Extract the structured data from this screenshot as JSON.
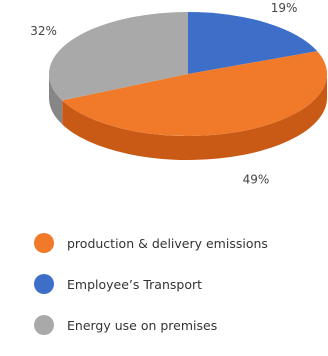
{
  "chart_data": {
    "type": "pie",
    "labels": [
      "production & delivery emissions",
      "Employee’s Transport",
      "Energy use on premises"
    ],
    "values": [
      49,
      19,
      32
    ],
    "value_labels": [
      "49%",
      "19%",
      "32%"
    ],
    "colors": [
      "#f07a2a",
      "#3d6fc9",
      "#a9a9a9"
    ],
    "side_colors": [
      "#c95a16",
      "#2b539c",
      "#868686"
    ],
    "style": "3d",
    "legend_position": "bottom"
  }
}
